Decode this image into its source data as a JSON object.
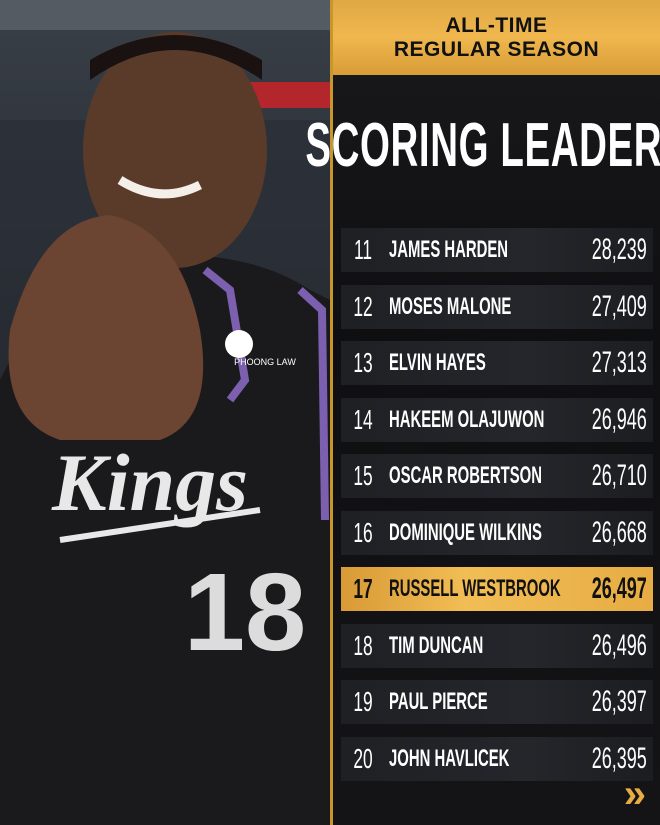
{
  "header": {
    "line1": "ALL-TIME",
    "line2": "REGULAR SEASON"
  },
  "title": "SCORING LEADERS",
  "leaders": [
    {
      "rank": "11",
      "name": "JAMES HARDEN",
      "points": "28,239"
    },
    {
      "rank": "12",
      "name": "MOSES MALONE",
      "points": "27,409"
    },
    {
      "rank": "13",
      "name": "ELVIN HAYES",
      "points": "27,313"
    },
    {
      "rank": "14",
      "name": "HAKEEM OLAJUWON",
      "points": "26,946"
    },
    {
      "rank": "15",
      "name": "OSCAR ROBERTSON",
      "points": "26,710"
    },
    {
      "rank": "16",
      "name": "DOMINIQUE WILKINS",
      "points": "26,668"
    },
    {
      "rank": "17",
      "name": "RUSSELL WESTBROOK",
      "points": "26,497",
      "highlighted": true
    },
    {
      "rank": "18",
      "name": "TIM DUNCAN",
      "points": "26,496"
    },
    {
      "rank": "19",
      "name": "PAUL PIERCE",
      "points": "26,397"
    },
    {
      "rank": "20",
      "name": "JOHN HAVLICEK",
      "points": "26,395"
    }
  ],
  "photo": {
    "jersey_text": "Kings",
    "jersey_number": "18",
    "sponsor": "PHOONG LAW"
  },
  "next_icon": "double-chevron-right-icon",
  "colors": {
    "gold": "#f0b74e",
    "background": "#111111",
    "jersey_purple": "#7d5fb0"
  }
}
